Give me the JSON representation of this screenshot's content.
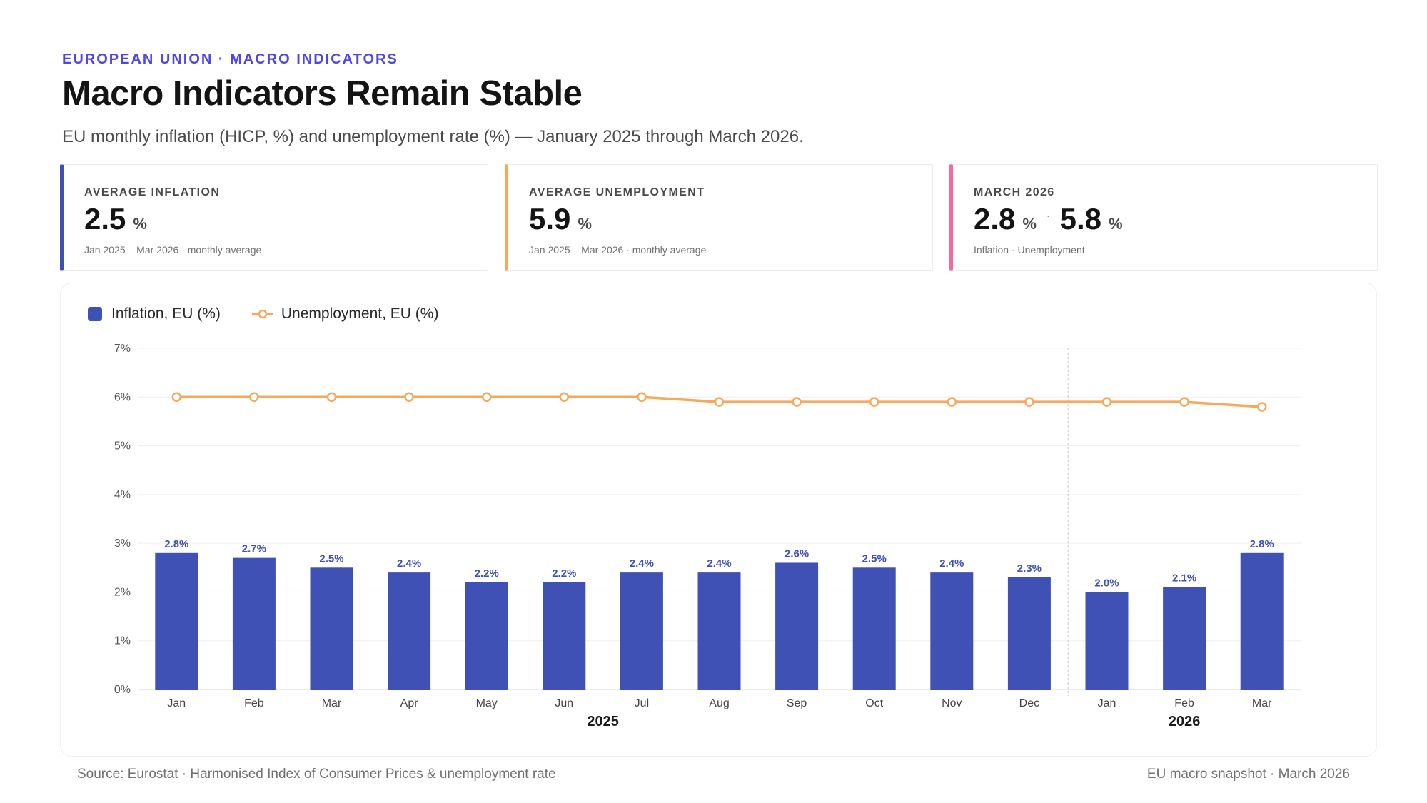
{
  "header": {
    "eyebrow": "EUROPEAN UNION · MACRO INDICATORS",
    "title": "Macro Indicators Remain Stable",
    "subtitle": "EU monthly inflation (HICP, %) and unemployment rate (%) — January 2025 through March 2026."
  },
  "kpis": [
    {
      "label": "AVERAGE INFLATION",
      "value": "2.5",
      "unit": "%",
      "note": "Jan 2025 – Mar 2026 · monthly average",
      "accent": "#3f51b5"
    },
    {
      "label": "AVERAGE UNEMPLOYMENT",
      "value": "5.9",
      "unit": "%",
      "note": "Jan 2025 – Mar 2026 · monthly average",
      "accent": "#f6a85b"
    },
    {
      "label": "MARCH 2026",
      "value": "2.8",
      "unit": "%",
      "sep": "·",
      "value2": "5.8",
      "unit2": "%",
      "note": "Inflation · Unemployment",
      "accent": "#f06aa3"
    }
  ],
  "legend": {
    "inflation": "Inflation, EU (%)",
    "unemployment": "Unemployment, EU (%)"
  },
  "colors": {
    "inflation": "#3f51b5",
    "unemployment": "#f6a85b",
    "accent": "#4f46e5"
  },
  "chart_data": {
    "type": "bar",
    "categories": [
      "Jan",
      "Feb",
      "Mar",
      "Apr",
      "May",
      "Jun",
      "Jul",
      "Aug",
      "Sep",
      "Oct",
      "Nov",
      "Dec",
      "Jan",
      "Feb",
      "Mar"
    ],
    "years": [
      {
        "label": "2025",
        "start": 0,
        "end": 11
      },
      {
        "label": "2026",
        "start": 12,
        "end": 14
      }
    ],
    "series": [
      {
        "name": "Inflation, EU (%)",
        "type": "bar",
        "values": [
          2.8,
          2.7,
          2.5,
          2.4,
          2.2,
          2.2,
          2.4,
          2.4,
          2.6,
          2.5,
          2.4,
          2.3,
          2.0,
          2.1,
          2.8
        ],
        "data_labels": [
          "2.8%",
          "2.7%",
          "2.5%",
          "2.4%",
          "2.2%",
          "2.2%",
          "2.4%",
          "2.4%",
          "2.6%",
          "2.5%",
          "2.4%",
          "2.3%",
          "2.0%",
          "2.1%",
          "2.8%"
        ]
      },
      {
        "name": "Unemployment, EU (%)",
        "type": "line",
        "values": [
          6.0,
          6.0,
          6.0,
          6.0,
          6.0,
          6.0,
          6.0,
          5.9,
          5.9,
          5.9,
          5.9,
          5.9,
          5.9,
          5.9,
          5.8
        ]
      }
    ],
    "ylim": [
      0,
      7
    ],
    "yticks": [
      "0%",
      "1%",
      "2%",
      "3%",
      "4%",
      "5%",
      "6%",
      "7%"
    ],
    "grid": true,
    "year_divider_after": 11,
    "legend_position": "top-left"
  },
  "footer": {
    "source": "Source: Eurostat · Harmonised Index of Consumer Prices & unemployment rate",
    "note": "EU macro snapshot · March 2026"
  }
}
